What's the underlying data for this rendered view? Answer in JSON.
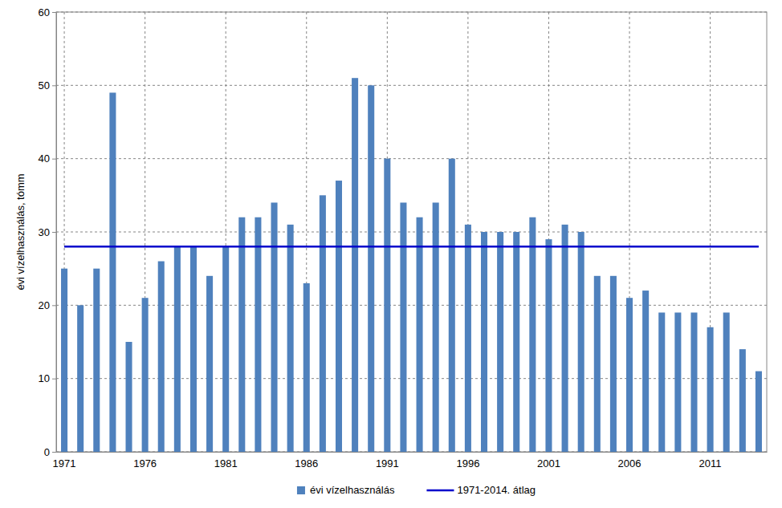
{
  "chart_data": {
    "type": "bar",
    "y_label": "évi vízelhasználás, tómm",
    "categories": [
      "1971",
      null,
      null,
      null,
      null,
      "1976",
      null,
      null,
      null,
      null,
      "1981",
      null,
      null,
      null,
      null,
      "1986",
      null,
      null,
      null,
      null,
      "1991",
      null,
      null,
      null,
      null,
      "1996",
      null,
      null,
      null,
      null,
      "2001",
      null,
      null,
      null,
      null,
      "2006",
      null,
      null,
      null,
      null,
      "2011",
      null,
      null,
      null
    ],
    "series": [
      {
        "name": "évi vízelhasználás",
        "type": "bar",
        "color": "#4f81bd",
        "values": [
          25,
          20,
          25,
          49,
          15,
          21,
          26,
          28,
          28,
          24,
          28,
          32,
          32,
          34,
          31,
          23,
          35,
          37,
          51,
          50,
          40,
          34,
          32,
          34,
          40,
          31,
          30,
          30,
          30,
          32,
          29,
          31,
          30,
          24,
          24,
          21,
          22,
          19,
          19,
          19,
          17,
          19,
          14,
          11
        ]
      },
      {
        "name": "1971-2014. átlag",
        "type": "line",
        "color": "#0000cc",
        "values": [
          28,
          28,
          28,
          28,
          28,
          28,
          28,
          28,
          28,
          28,
          28,
          28,
          28,
          28,
          28,
          28,
          28,
          28,
          28,
          28,
          28,
          28,
          28,
          28,
          28,
          28,
          28,
          28,
          28,
          28,
          28,
          28,
          28,
          28,
          28,
          28,
          28,
          28,
          28,
          28,
          28,
          28,
          28,
          28
        ]
      }
    ],
    "ylim": [
      0,
      60
    ],
    "yticks": [
      0,
      10,
      20,
      30,
      40,
      50,
      60
    ],
    "grid": true,
    "legend": "bottom"
  }
}
